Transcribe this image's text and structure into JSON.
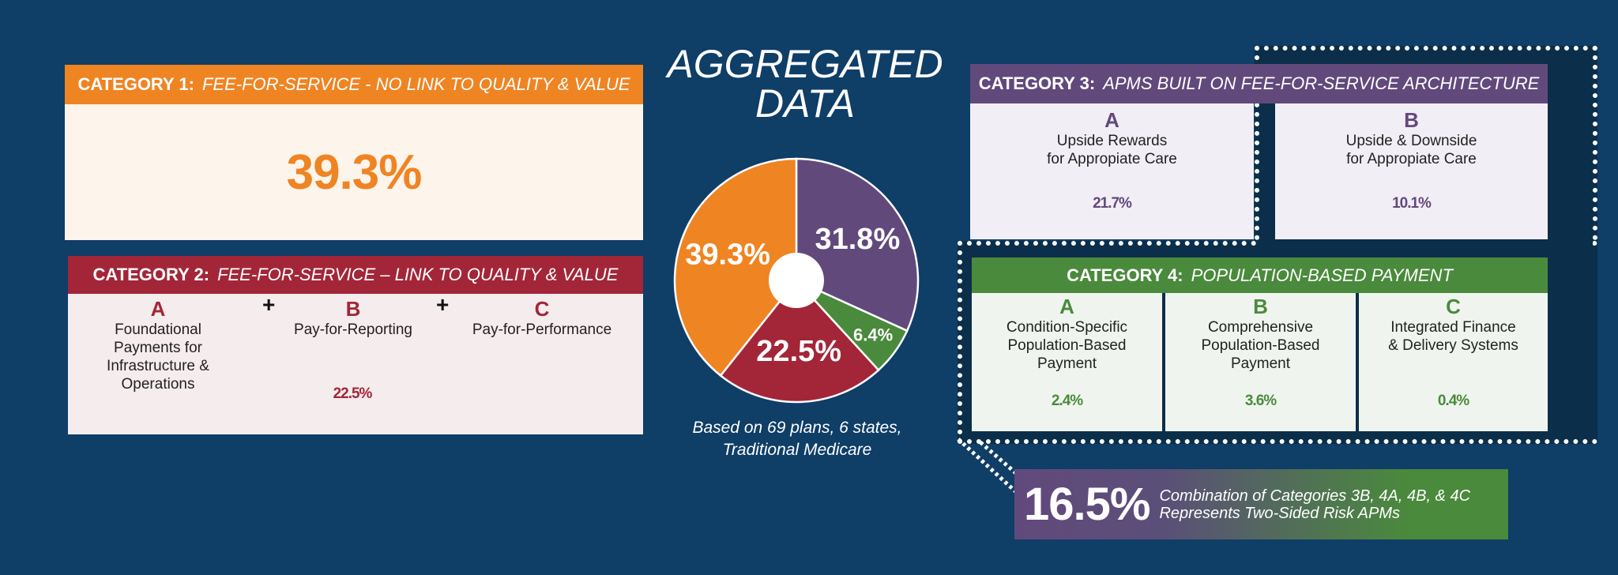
{
  "colors": {
    "background": "#0f3e67",
    "orange": "#ef8423",
    "red": "#a32638",
    "purple": "#62497c",
    "green": "#4a8a3c"
  },
  "category1": {
    "label": "CATEGORY 1:",
    "title": "FEE-FOR-SERVICE - NO LINK TO QUALITY & VALUE",
    "value": "39.3%"
  },
  "category2": {
    "label": "CATEGORY 2:",
    "title": "FEE-FOR-SERVICE – LINK TO QUALITY & VALUE",
    "plus": "+",
    "value": "22.5%",
    "items": [
      {
        "letter": "A",
        "text": "Foundational Payments for Infrastructure & Operations"
      },
      {
        "letter": "B",
        "text": "Pay-for-Reporting"
      },
      {
        "letter": "C",
        "text": "Pay-for-Performance"
      }
    ]
  },
  "center": {
    "title_line1": "AGGREGATED",
    "title_line2": "DATA",
    "caption_line1": "Based on 69 plans, 6 states,",
    "caption_line2": "Traditional Medicare"
  },
  "chart_data": {
    "type": "pie",
    "values": [
      31.8,
      6.4,
      22.5,
      39.3
    ],
    "labels": [
      "31.8%",
      "6.4%",
      "22.5%",
      "39.3%"
    ],
    "colors": [
      "#62497c",
      "#4a8a3c",
      "#a32638",
      "#ef8423"
    ],
    "start": "top",
    "direction": "clockwise",
    "donut_hole": true
  },
  "category3": {
    "label": "CATEGORY 3:",
    "title": "APMS BUILT ON FEE-FOR-SERVICE ARCHITECTURE",
    "items": [
      {
        "letter": "A",
        "line1": "Upside Rewards",
        "line2": "for Appropiate Care",
        "value": "21.7%"
      },
      {
        "letter": "B",
        "line1": "Upside & Downside",
        "line2": "for Appropiate Care",
        "value": "10.1%"
      }
    ]
  },
  "category4": {
    "label": "CATEGORY 4:",
    "title": "POPULATION-BASED PAYMENT",
    "items": [
      {
        "letter": "A",
        "text": "Condition-Specific Population-Based Payment",
        "value": "2.4%"
      },
      {
        "letter": "B",
        "text": "Comprehensive Population-Based Payment",
        "value": "3.6%"
      },
      {
        "letter": "C",
        "text": "Integrated Finance & Delivery Systems",
        "value": "0.4%"
      }
    ]
  },
  "callout": {
    "value": "16.5%",
    "line1": "Combination of Categories 3B, 4A, 4B, & 4C",
    "line2": "Represents Two-Sided Risk APMs"
  }
}
